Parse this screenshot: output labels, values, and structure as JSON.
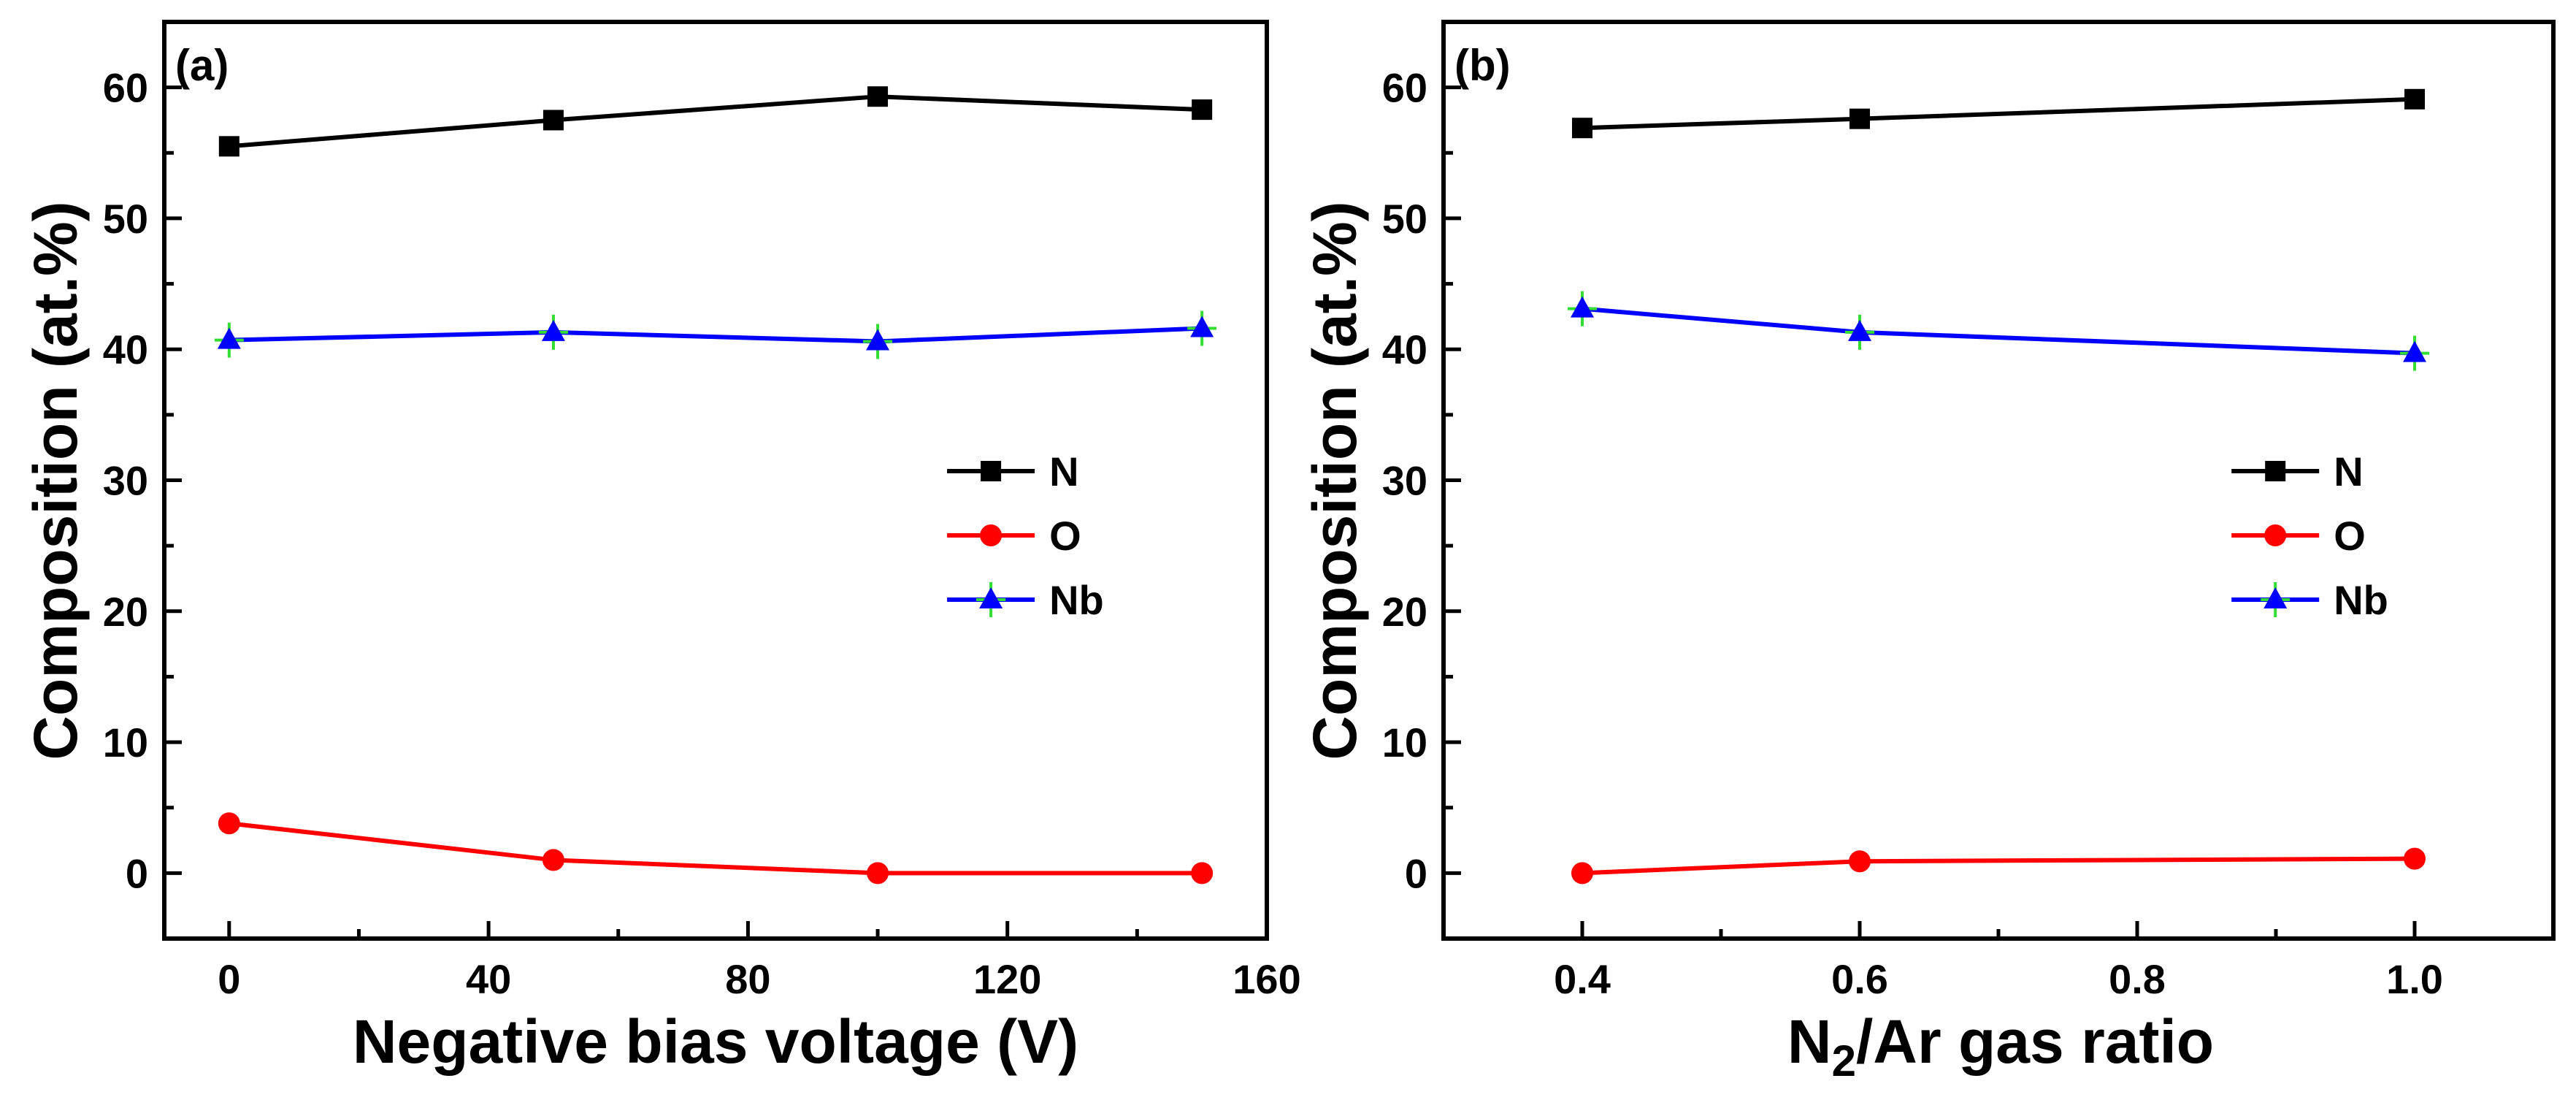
{
  "chart_data": [
    {
      "type": "line",
      "panel_label": "(a)",
      "xlabel": "Negative bias voltage (V)",
      "ylabel": "Composition (at.%)",
      "xlim": [
        -10,
        160
      ],
      "ylim": [
        -5,
        65
      ],
      "xticks": [
        "0",
        "40",
        "80",
        "120",
        "160"
      ],
      "yticks": [
        "0",
        "10",
        "20",
        "30",
        "40",
        "50",
        "60"
      ],
      "x": [
        0,
        50,
        100,
        150
      ],
      "series": [
        {
          "name": "N",
          "values": [
            55.5,
            57.5,
            59.3,
            58.3
          ],
          "color": "#000000",
          "marker": "square"
        },
        {
          "name": "O",
          "values": [
            3.8,
            1.0,
            0.0,
            0.0
          ],
          "color": "#ff0000",
          "marker": "circle"
        },
        {
          "name": "Nb",
          "values": [
            40.7,
            41.3,
            40.6,
            41.6
          ],
          "color": "#0000ff",
          "marker": "triangle"
        }
      ],
      "legend_position": "center-right"
    },
    {
      "type": "line",
      "panel_label": "(b)",
      "xlabel": "N2/Ar gas ratio",
      "xlabel_main": "N",
      "xlabel_sub": "2",
      "xlabel_rest": "/Ar gas ratio",
      "ylabel": "Composition (at.%)",
      "xlim": [
        0.3,
        1.1
      ],
      "ylim": [
        -5,
        65
      ],
      "xticks": [
        "0.4",
        "0.6",
        "0.8",
        "1.0"
      ],
      "yticks": [
        "0",
        "10",
        "20",
        "30",
        "40",
        "50",
        "60"
      ],
      "x": [
        0.4,
        0.6,
        1.0
      ],
      "series": [
        {
          "name": "N",
          "values": [
            56.9,
            57.6,
            59.1
          ],
          "color": "#000000",
          "marker": "square"
        },
        {
          "name": "O",
          "values": [
            0.0,
            0.9,
            1.1
          ],
          "color": "#ff0000",
          "marker": "circle"
        },
        {
          "name": "Nb",
          "values": [
            43.1,
            41.3,
            39.7
          ],
          "color": "#0000ff",
          "marker": "triangle"
        }
      ],
      "legend_position": "center-right"
    }
  ]
}
